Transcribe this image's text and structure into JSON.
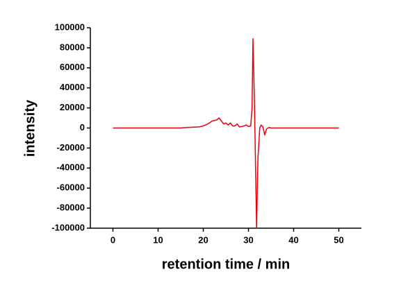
{
  "chart_data": {
    "type": "line",
    "x_label": "retention time / min",
    "y_label": "intensity",
    "x": [
      0,
      5,
      10,
      15,
      16.5,
      19,
      20,
      21,
      22,
      23,
      23.5,
      24,
      24.5,
      25,
      25.5,
      26,
      26.5,
      27,
      27.5,
      28,
      29,
      29.5,
      30,
      30.5,
      30.8,
      31,
      31.3,
      31.5,
      31.8,
      32.1,
      32.5,
      32.8,
      33.2,
      33.6,
      34,
      34.5,
      35,
      40,
      45,
      50
    ],
    "series": [
      {
        "color": "#e8000b",
        "values": [
          0,
          0,
          0,
          0,
          500,
          1000,
          2000,
          4000,
          7000,
          8000,
          10000,
          7000,
          4000,
          5000,
          3000,
          5000,
          2000,
          2000,
          4000,
          1000,
          2000,
          3000,
          1500,
          2000,
          20000,
          89000,
          30000,
          -20000,
          -100000,
          -30000,
          0,
          3000,
          1000,
          -7000,
          -1000,
          500,
          0,
          0,
          0,
          0
        ]
      }
    ],
    "xlim": [
      -5,
      55
    ],
    "xticks": [
      0,
      10,
      20,
      30,
      40,
      50
    ],
    "ylim": [
      -100000,
      100000
    ],
    "yticks": [
      -100000,
      -80000,
      -60000,
      -40000,
      -20000,
      0,
      20000,
      40000,
      60000,
      80000,
      100000
    ]
  }
}
